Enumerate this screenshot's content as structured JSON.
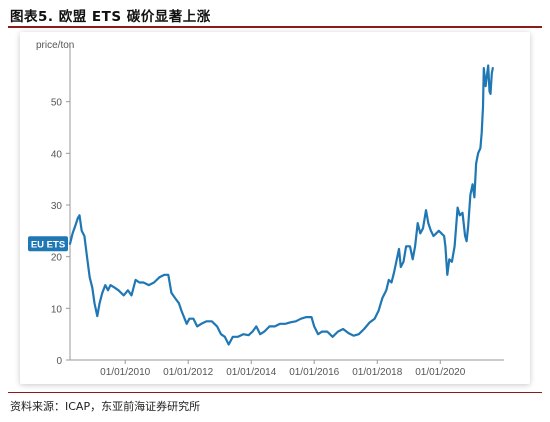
{
  "figure": {
    "title": "图表5.    欧盟 ETS 碳价显著上涨",
    "source": "资料来源：ICAP，东亚前海证券研究所"
  },
  "colors": {
    "line": "#1f77b4",
    "axis": "#999999",
    "text": "#555555",
    "label_bg": "#1f77b4",
    "rule": "#8a1c1c"
  },
  "chart_data": {
    "type": "line",
    "title": "",
    "xlabel": "",
    "ylabel": "price/ton",
    "grid": false,
    "xlim": [
      "2008-04-01",
      "2021-09-15"
    ],
    "ylim": [
      0,
      60
    ],
    "x_ticks": [
      "01/01/2010",
      "01/01/2012",
      "01/01/2014",
      "01/01/2016",
      "01/01/2018",
      "01/01/2020"
    ],
    "y_ticks": [
      0,
      10,
      20,
      30,
      40,
      50
    ],
    "series": [
      {
        "name": "EU ETS",
        "values": [
          [
            "2008-04-01",
            22.5
          ],
          [
            "2008-05-01",
            24.5
          ],
          [
            "2008-06-01",
            26
          ],
          [
            "2008-07-01",
            27.5
          ],
          [
            "2008-07-20",
            28
          ],
          [
            "2008-08-15",
            25
          ],
          [
            "2008-09-15",
            24
          ],
          [
            "2008-10-15",
            20
          ],
          [
            "2008-11-15",
            16
          ],
          [
            "2008-12-15",
            14
          ],
          [
            "2009-01-10",
            11
          ],
          [
            "2009-02-12",
            8.5
          ],
          [
            "2009-03-10",
            11
          ],
          [
            "2009-04-10",
            13
          ],
          [
            "2009-05-15",
            14.5
          ],
          [
            "2009-06-15",
            13.5
          ],
          [
            "2009-07-15",
            14.5
          ],
          [
            "2009-09-01",
            14
          ],
          [
            "2009-10-15",
            13.5
          ],
          [
            "2009-12-15",
            12.5
          ],
          [
            "2010-02-01",
            13.5
          ],
          [
            "2010-03-15",
            12.5
          ],
          [
            "2010-05-01",
            15.5
          ],
          [
            "2010-06-15",
            15
          ],
          [
            "2010-08-01",
            15
          ],
          [
            "2010-10-01",
            14.5
          ],
          [
            "2010-12-01",
            15
          ],
          [
            "2011-02-01",
            16
          ],
          [
            "2011-04-01",
            16.5
          ],
          [
            "2011-05-15",
            16.5
          ],
          [
            "2011-06-20",
            13
          ],
          [
            "2011-08-01",
            12
          ],
          [
            "2011-09-15",
            11
          ],
          [
            "2011-10-15",
            9.5
          ],
          [
            "2011-12-15",
            7
          ],
          [
            "2012-01-15",
            8
          ],
          [
            "2012-03-01",
            8
          ],
          [
            "2012-04-15",
            6.5
          ],
          [
            "2012-06-01",
            7
          ],
          [
            "2012-08-01",
            7.5
          ],
          [
            "2012-10-01",
            7.5
          ],
          [
            "2012-12-01",
            6.5
          ],
          [
            "2013-01-15",
            5
          ],
          [
            "2013-03-01",
            4.5
          ],
          [
            "2013-04-15",
            3
          ],
          [
            "2013-06-01",
            4.5
          ],
          [
            "2013-08-01",
            4.5
          ],
          [
            "2013-10-01",
            5
          ],
          [
            "2013-12-01",
            4.8
          ],
          [
            "2014-01-15",
            5.5
          ],
          [
            "2014-03-01",
            6.5
          ],
          [
            "2014-04-15",
            5
          ],
          [
            "2014-06-01",
            5.5
          ],
          [
            "2014-08-01",
            6.5
          ],
          [
            "2014-10-01",
            6.5
          ],
          [
            "2014-12-01",
            7
          ],
          [
            "2015-02-01",
            7
          ],
          [
            "2015-04-01",
            7.3
          ],
          [
            "2015-06-01",
            7.5
          ],
          [
            "2015-08-01",
            8
          ],
          [
            "2015-10-01",
            8.3
          ],
          [
            "2015-12-01",
            8.3
          ],
          [
            "2016-01-01",
            6.5
          ],
          [
            "2016-02-15",
            5
          ],
          [
            "2016-04-01",
            5.5
          ],
          [
            "2016-06-01",
            5.5
          ],
          [
            "2016-08-01",
            4.5
          ],
          [
            "2016-10-01",
            5.5
          ],
          [
            "2016-12-01",
            6
          ],
          [
            "2017-02-01",
            5.2
          ],
          [
            "2017-04-01",
            4.7
          ],
          [
            "2017-06-01",
            5
          ],
          [
            "2017-08-01",
            6
          ],
          [
            "2017-10-01",
            7.2
          ],
          [
            "2017-12-01",
            8
          ],
          [
            "2018-01-15",
            9.5
          ],
          [
            "2018-03-01",
            12
          ],
          [
            "2018-04-15",
            13.5
          ],
          [
            "2018-05-15",
            15.5
          ],
          [
            "2018-06-15",
            15
          ],
          [
            "2018-07-15",
            17
          ],
          [
            "2018-08-15",
            19.5
          ],
          [
            "2018-09-10",
            21.5
          ],
          [
            "2018-10-01",
            18
          ],
          [
            "2018-11-01",
            19
          ],
          [
            "2018-12-01",
            22
          ],
          [
            "2019-01-15",
            22
          ],
          [
            "2019-02-15",
            19.5
          ],
          [
            "2019-03-15",
            22
          ],
          [
            "2019-04-15",
            26.5
          ],
          [
            "2019-05-15",
            24.5
          ],
          [
            "2019-06-15",
            25.5
          ],
          [
            "2019-07-20",
            29
          ],
          [
            "2019-08-15",
            26.5
          ],
          [
            "2019-09-15",
            25
          ],
          [
            "2019-10-15",
            24
          ],
          [
            "2019-11-15",
            24.5
          ],
          [
            "2019-12-15",
            25
          ],
          [
            "2020-01-15",
            24.5
          ],
          [
            "2020-02-15",
            24
          ],
          [
            "2020-03-01",
            22
          ],
          [
            "2020-03-23",
            16.5
          ],
          [
            "2020-04-15",
            19.5
          ],
          [
            "2020-05-15",
            19
          ],
          [
            "2020-06-15",
            22
          ],
          [
            "2020-07-20",
            29.5
          ],
          [
            "2020-08-15",
            28
          ],
          [
            "2020-09-15",
            28.5
          ],
          [
            "2020-10-15",
            24
          ],
          [
            "2020-11-01",
            23
          ],
          [
            "2020-11-20",
            26
          ],
          [
            "2020-12-15",
            32
          ],
          [
            "2021-01-10",
            34
          ],
          [
            "2021-01-31",
            31.5
          ],
          [
            "2021-02-20",
            38
          ],
          [
            "2021-03-15",
            40
          ],
          [
            "2021-04-10",
            41
          ],
          [
            "2021-04-25",
            44
          ],
          [
            "2021-05-10",
            49
          ],
          [
            "2021-05-20",
            56.5
          ],
          [
            "2021-06-10",
            53
          ],
          [
            "2021-06-25",
            55
          ],
          [
            "2021-07-10",
            57
          ],
          [
            "2021-07-25",
            52
          ],
          [
            "2021-08-05",
            51.5
          ],
          [
            "2021-08-20",
            55.5
          ],
          [
            "2021-09-01",
            56.5
          ]
        ]
      }
    ],
    "legend": {
      "label": "EU ETS",
      "placement": "left, at start of line"
    }
  }
}
